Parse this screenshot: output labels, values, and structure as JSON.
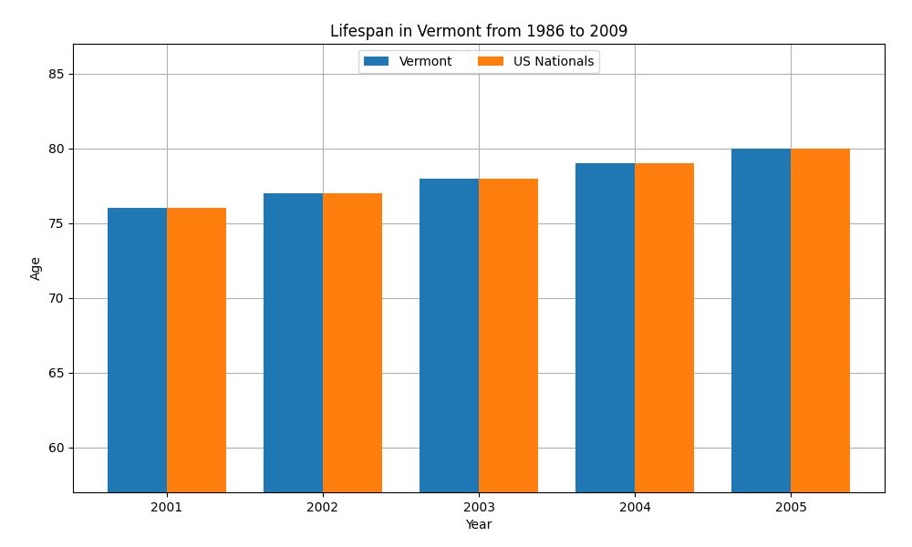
{
  "chart_data": {
    "type": "bar",
    "title": "Lifespan in Vermont from 1986 to 2009",
    "x_label": "Year",
    "y_label": "Age",
    "categories": [
      "2001",
      "2002",
      "2003",
      "2004",
      "2005"
    ],
    "series": [
      {
        "name": "Vermont",
        "values": [
          76,
          77,
          78,
          79,
          80
        ]
      },
      {
        "name": "US Nationals",
        "values": [
          76,
          77,
          78,
          79,
          80
        ]
      }
    ],
    "ylim": [
      57,
      87
    ],
    "yticks": [
      60,
      65,
      70,
      75,
      80,
      85
    ],
    "grid": true,
    "legend": "upper center"
  }
}
